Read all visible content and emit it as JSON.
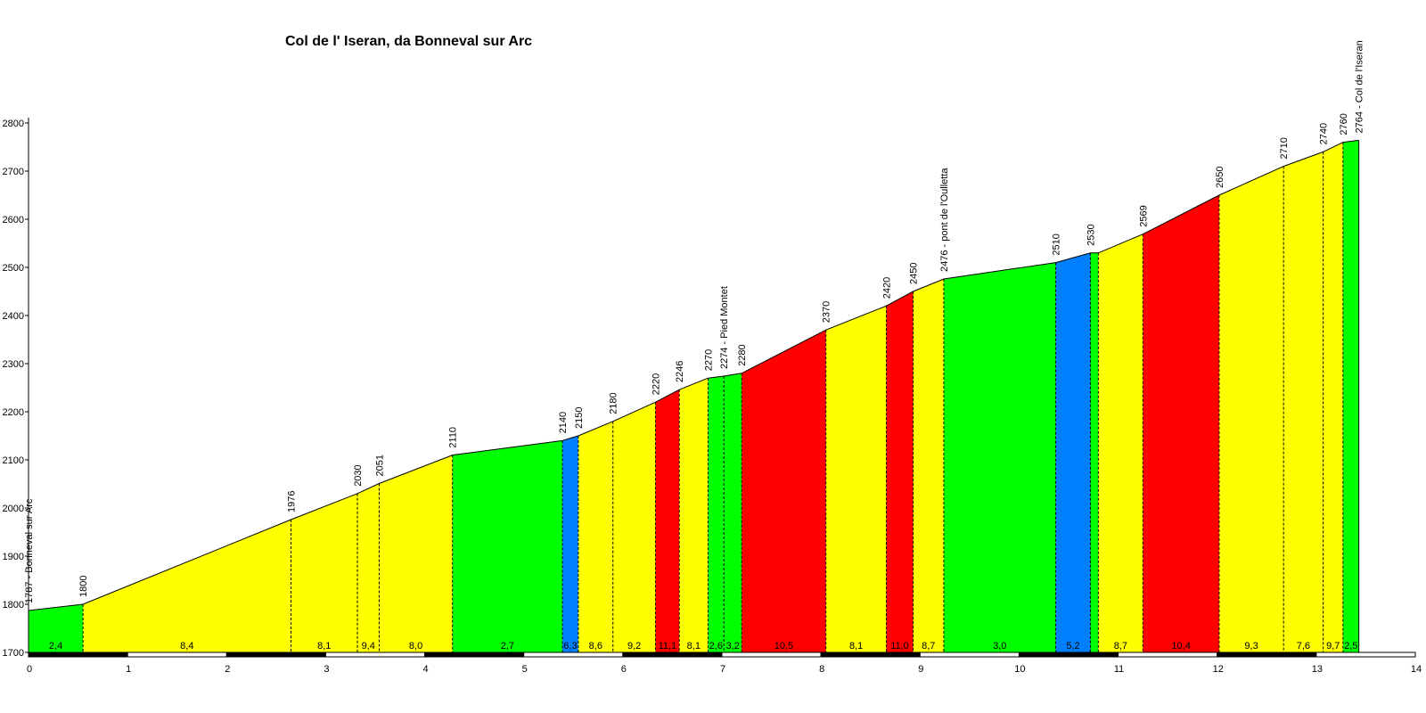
{
  "chart_data": {
    "type": "area",
    "title": "Col de l' Iseran, da Bonneval sur Arc",
    "xlabel": "",
    "ylabel": "",
    "xlim": [
      0,
      14
    ],
    "ylim": [
      1700,
      2800
    ],
    "x_ticks": [
      0,
      1,
      2,
      3,
      4,
      5,
      6,
      7,
      8,
      9,
      10,
      11,
      12,
      13,
      14
    ],
    "y_ticks": [
      1700,
      1800,
      1900,
      2000,
      2100,
      2200,
      2300,
      2400,
      2500,
      2600,
      2700,
      2800
    ],
    "grid": false,
    "colors": {
      "green": "#00ff00",
      "yellow": "#ffff00",
      "red": "#ff0000",
      "blue": "#0080ff"
    },
    "points": [
      {
        "km": 0.0,
        "alt": 1787,
        "label": "1787 - Bonneval sur Arc"
      },
      {
        "km": 0.55,
        "alt": 1800,
        "label": "1800"
      },
      {
        "km": 2.65,
        "alt": 1976,
        "label": "1976"
      },
      {
        "km": 3.32,
        "alt": 2030,
        "label": "2030"
      },
      {
        "km": 3.54,
        "alt": 2051,
        "label": "2051"
      },
      {
        "km": 4.28,
        "alt": 2110,
        "label": "2110"
      },
      {
        "km": 5.39,
        "alt": 2140,
        "label": "2140"
      },
      {
        "km": 5.55,
        "alt": 2150,
        "label": "2150"
      },
      {
        "km": 5.9,
        "alt": 2180,
        "label": "2180"
      },
      {
        "km": 6.33,
        "alt": 2220,
        "label": "2220"
      },
      {
        "km": 6.57,
        "alt": 2246,
        "label": "2246"
      },
      {
        "km": 6.86,
        "alt": 2270,
        "label": "2270"
      },
      {
        "km": 7.02,
        "alt": 2274,
        "label": "2274 - Pied Montet"
      },
      {
        "km": 7.2,
        "alt": 2280,
        "label": "2280"
      },
      {
        "km": 8.05,
        "alt": 2370,
        "label": "2370"
      },
      {
        "km": 8.66,
        "alt": 2420,
        "label": "2420"
      },
      {
        "km": 8.93,
        "alt": 2450,
        "label": "2450"
      },
      {
        "km": 9.24,
        "alt": 2476,
        "label": "2476 - pont de l'Oulletta"
      },
      {
        "km": 10.37,
        "alt": 2510,
        "label": "2510"
      },
      {
        "km": 10.72,
        "alt": 2530,
        "label": "2530"
      },
      {
        "km": 10.8,
        "alt": 2530,
        "label": ""
      },
      {
        "km": 11.25,
        "alt": 2569,
        "label": "2569"
      },
      {
        "km": 12.02,
        "alt": 2650,
        "label": "2650"
      },
      {
        "km": 12.67,
        "alt": 2710,
        "label": "2710"
      },
      {
        "km": 13.07,
        "alt": 2740,
        "label": "2740"
      },
      {
        "km": 13.27,
        "alt": 2760,
        "label": "2760"
      },
      {
        "km": 13.43,
        "alt": 2764,
        "label": "2764 - Col de l'Iseran"
      }
    ],
    "segments": [
      {
        "gradient": "2,4",
        "color": "green"
      },
      {
        "gradient": "8,4",
        "color": "yellow"
      },
      {
        "gradient": "8,1",
        "color": "yellow"
      },
      {
        "gradient": "9,4",
        "color": "yellow"
      },
      {
        "gradient": "8,0",
        "color": "yellow"
      },
      {
        "gradient": "2,7",
        "color": "green"
      },
      {
        "gradient": "6,3",
        "color": "blue"
      },
      {
        "gradient": "8,6",
        "color": "yellow"
      },
      {
        "gradient": "9,2",
        "color": "yellow"
      },
      {
        "gradient": "11,1",
        "color": "red"
      },
      {
        "gradient": "8,1",
        "color": "yellow"
      },
      {
        "gradient": "2,6",
        "color": "green"
      },
      {
        "gradient": "3,2",
        "color": "green"
      },
      {
        "gradient": "10,5",
        "color": "red"
      },
      {
        "gradient": "8,1",
        "color": "yellow"
      },
      {
        "gradient": "11,0",
        "color": "red"
      },
      {
        "gradient": "8,7",
        "color": "yellow"
      },
      {
        "gradient": "3,0",
        "color": "green"
      },
      {
        "gradient": "5,2",
        "color": "blue"
      },
      {
        "gradient": "",
        "color": "green"
      },
      {
        "gradient": "8,7",
        "color": "yellow"
      },
      {
        "gradient": "10,4",
        "color": "red"
      },
      {
        "gradient": "9,3",
        "color": "yellow"
      },
      {
        "gradient": "7,6",
        "color": "yellow"
      },
      {
        "gradient": "9,7",
        "color": "yellow"
      },
      {
        "gradient": "2,5",
        "color": "green"
      }
    ]
  }
}
